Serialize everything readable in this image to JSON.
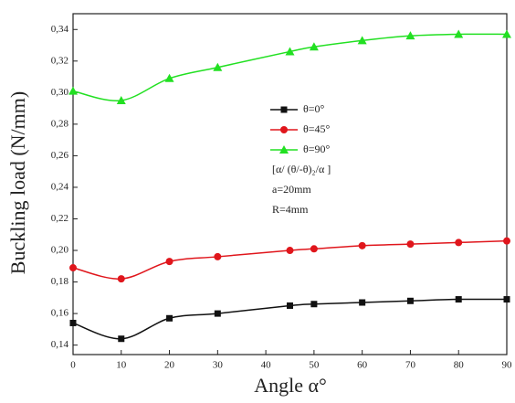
{
  "chart_data": {
    "type": "line",
    "x_label": "Angle α°",
    "y_label": "Buckling load (N/mm)",
    "x": [
      0,
      10,
      20,
      30,
      45,
      50,
      60,
      70,
      80,
      90
    ],
    "series": [
      {
        "name": "θ=0°",
        "color": "#111111",
        "marker": "square",
        "values": [
          0.154,
          0.144,
          0.157,
          0.16,
          0.165,
          0.166,
          0.167,
          0.168,
          0.169,
          0.169
        ]
      },
      {
        "name": "θ=45°",
        "color": "#e0161c",
        "marker": "circle",
        "values": [
          0.189,
          0.182,
          0.193,
          0.196,
          0.2,
          0.201,
          0.203,
          0.204,
          0.205,
          0.206
        ]
      },
      {
        "name": "θ=90°",
        "color": "#22e022",
        "marker": "triangle",
        "values": [
          0.301,
          0.295,
          0.309,
          0.316,
          0.326,
          0.329,
          0.333,
          0.336,
          0.337,
          0.337
        ]
      }
    ],
    "annotations": [
      "[α/ (θ/-θ)₂/α ]",
      "a=20mm",
      "R=4mm"
    ],
    "xlim": [
      0,
      90
    ],
    "xticks": [
      0,
      10,
      20,
      30,
      40,
      50,
      60,
      70,
      80,
      90
    ],
    "ylim": [
      0.134,
      0.35
    ],
    "yticks": [
      {
        "value": 0.14,
        "label": "0,14"
      },
      {
        "value": 0.16,
        "label": "0,16"
      },
      {
        "value": 0.18,
        "label": "0,18"
      },
      {
        "value": 0.2,
        "label": "0,20"
      },
      {
        "value": 0.22,
        "label": "0,22"
      },
      {
        "value": 0.24,
        "label": "0,24"
      },
      {
        "value": 0.26,
        "label": "0,26"
      },
      {
        "value": 0.28,
        "label": "0,28"
      },
      {
        "value": 0.3,
        "label": "0,30"
      },
      {
        "value": 0.32,
        "label": "0,32"
      },
      {
        "value": 0.34,
        "label": "0,34"
      }
    ]
  }
}
